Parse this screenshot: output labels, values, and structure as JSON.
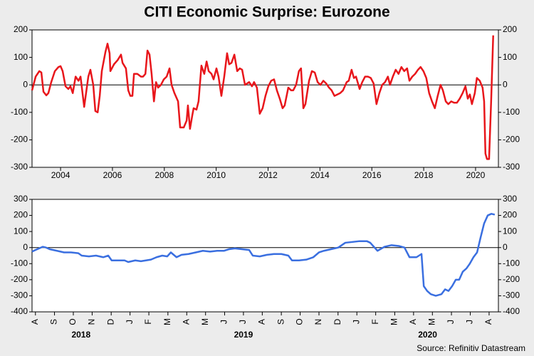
{
  "title": "CITI Economic Surprise: Eurozone",
  "source": "Source: Refinitiv Datastream",
  "chart_data": [
    {
      "type": "line",
      "color": "#e8161b",
      "xlim": [
        2002.9,
        2020.88
      ],
      "xticks": [
        2004,
        2006,
        2008,
        2010,
        2012,
        2014,
        2016,
        2018,
        2020
      ],
      "ylim": [
        -300,
        200
      ],
      "yticks": [
        -300,
        -200,
        -100,
        0,
        100,
        200
      ],
      "mirror_yticks": true,
      "zero_line": true,
      "x": [
        2002.9,
        2003.04,
        2003.18,
        2003.26,
        2003.34,
        2003.45,
        2003.53,
        2003.64,
        2003.78,
        2003.92,
        2004.0,
        2004.08,
        2004.19,
        2004.3,
        2004.38,
        2004.47,
        2004.58,
        2004.69,
        2004.77,
        2004.91,
        2005.07,
        2005.15,
        2005.26,
        2005.34,
        2005.43,
        2005.51,
        2005.59,
        2005.73,
        2005.81,
        2005.89,
        2005.92,
        2006.06,
        2006.2,
        2006.33,
        2006.39,
        2006.52,
        2006.61,
        2006.69,
        2006.77,
        2006.83,
        2006.96,
        2007.1,
        2007.18,
        2007.27,
        2007.35,
        2007.43,
        2007.51,
        2007.6,
        2007.68,
        2007.76,
        2007.87,
        2007.98,
        2008.09,
        2008.2,
        2008.28,
        2008.39,
        2008.53,
        2008.61,
        2008.75,
        2008.86,
        2008.91,
        2008.99,
        2009.08,
        2009.13,
        2009.24,
        2009.32,
        2009.43,
        2009.54,
        2009.63,
        2009.71,
        2009.82,
        2009.9,
        2010.01,
        2010.09,
        2010.2,
        2010.31,
        2010.42,
        2010.5,
        2010.59,
        2010.7,
        2010.81,
        2010.91,
        2011.0,
        2011.11,
        2011.27,
        2011.38,
        2011.46,
        2011.57,
        2011.68,
        2011.79,
        2011.9,
        2012.01,
        2012.12,
        2012.23,
        2012.34,
        2012.45,
        2012.56,
        2012.64,
        2012.78,
        2012.89,
        2012.97,
        2013.08,
        2013.19,
        2013.27,
        2013.36,
        2013.44,
        2013.58,
        2013.69,
        2013.8,
        2013.91,
        2014.02,
        2014.13,
        2014.24,
        2014.35,
        2014.45,
        2014.56,
        2014.67,
        2014.78,
        2014.89,
        2015.03,
        2015.11,
        2015.22,
        2015.31,
        2015.39,
        2015.53,
        2015.63,
        2015.74,
        2015.85,
        2015.96,
        2016.07,
        2016.18,
        2016.29,
        2016.4,
        2016.51,
        2016.62,
        2016.7,
        2016.81,
        2016.92,
        2017.03,
        2017.14,
        2017.25,
        2017.36,
        2017.45,
        2017.56,
        2017.67,
        2017.78,
        2017.88,
        2017.99,
        2018.1,
        2018.21,
        2018.32,
        2018.43,
        2018.54,
        2018.65,
        2018.74,
        2018.85,
        2018.95,
        2019.06,
        2019.17,
        2019.28,
        2019.39,
        2019.5,
        2019.61,
        2019.7,
        2019.78,
        2019.86,
        2019.97,
        2020.05,
        2020.16,
        2020.27,
        2020.33,
        2020.38,
        2020.44,
        2020.52,
        2020.6,
        2020.68
      ],
      "values": [
        -20,
        30,
        50,
        45,
        -25,
        -38,
        -30,
        10,
        50,
        65,
        68,
        50,
        -5,
        -15,
        -5,
        -30,
        30,
        15,
        30,
        -80,
        30,
        55,
        0,
        -95,
        -100,
        -40,
        50,
        120,
        150,
        115,
        50,
        75,
        90,
        110,
        80,
        60,
        -20,
        -40,
        -40,
        40,
        40,
        30,
        30,
        40,
        125,
        110,
        40,
        -60,
        10,
        -10,
        0,
        20,
        30,
        60,
        0,
        -30,
        -60,
        -155,
        -155,
        -130,
        -75,
        -160,
        -110,
        -85,
        -90,
        -60,
        70,
        40,
        85,
        50,
        40,
        20,
        60,
        30,
        -40,
        30,
        115,
        75,
        80,
        110,
        50,
        60,
        55,
        0,
        10,
        -5,
        10,
        -10,
        -105,
        -85,
        -40,
        -5,
        15,
        20,
        -20,
        -50,
        -85,
        -75,
        -10,
        -20,
        -20,
        0,
        50,
        60,
        -85,
        -70,
        15,
        50,
        45,
        10,
        0,
        15,
        5,
        -10,
        -20,
        -40,
        -35,
        -30,
        -20,
        10,
        15,
        55,
        25,
        30,
        -15,
        10,
        30,
        30,
        25,
        5,
        -70,
        -30,
        0,
        10,
        30,
        0,
        30,
        55,
        40,
        65,
        50,
        60,
        15,
        30,
        40,
        55,
        65,
        50,
        25,
        -30,
        -60,
        -85,
        -40,
        0,
        -20,
        -60,
        -70,
        -60,
        -65,
        -65,
        -50,
        -30,
        -5,
        -50,
        -35,
        -70,
        -30,
        25,
        15,
        -10,
        -60,
        -250,
        -270,
        -270,
        -60,
        180
      ]
    },
    {
      "type": "line",
      "color": "#3a6fe0",
      "xlim": [
        2018.568,
        2020.624
      ],
      "xticks": [
        {
          "value": 2018.583,
          "label": "A"
        },
        {
          "value": 2018.667,
          "label": "S"
        },
        {
          "value": 2018.75,
          "label": "O"
        },
        {
          "value": 2018.833,
          "label": "N"
        },
        {
          "value": 2018.917,
          "label": "D"
        },
        {
          "value": 2019.0,
          "label": "J"
        },
        {
          "value": 2019.083,
          "label": "F"
        },
        {
          "value": 2019.167,
          "label": "M"
        },
        {
          "value": 2019.25,
          "label": "A"
        },
        {
          "value": 2019.333,
          "label": "M"
        },
        {
          "value": 2019.417,
          "label": "J"
        },
        {
          "value": 2019.5,
          "label": "J"
        },
        {
          "value": 2019.583,
          "label": "A"
        },
        {
          "value": 2019.667,
          "label": "S"
        },
        {
          "value": 2019.75,
          "label": "O"
        },
        {
          "value": 2019.833,
          "label": "N"
        },
        {
          "value": 2019.917,
          "label": "D"
        },
        {
          "value": 2020.0,
          "label": "J"
        },
        {
          "value": 2020.083,
          "label": "F"
        },
        {
          "value": 2020.167,
          "label": "M"
        },
        {
          "value": 2020.25,
          "label": "A"
        },
        {
          "value": 2020.333,
          "label": "M"
        },
        {
          "value": 2020.417,
          "label": "J"
        },
        {
          "value": 2020.5,
          "label": "J"
        },
        {
          "value": 2020.583,
          "label": "A"
        }
      ],
      "year_labels": [
        2018,
        2019,
        2020
      ],
      "ylim": [
        -400,
        300
      ],
      "yticks": [
        -400,
        -300,
        -200,
        -100,
        0,
        100,
        200,
        300
      ],
      "mirror_yticks": true,
      "zero_line": true,
      "x": [
        2018.568,
        2018.583,
        2018.599,
        2018.615,
        2018.63,
        2018.646,
        2018.678,
        2018.709,
        2018.74,
        2018.772,
        2018.787,
        2018.819,
        2018.85,
        2018.882,
        2018.904,
        2018.919,
        2018.944,
        2018.976,
        2018.992,
        2019.023,
        2019.048,
        2019.07,
        2019.092,
        2019.117,
        2019.142,
        2019.164,
        2019.18,
        2019.205,
        2019.227,
        2019.258,
        2019.29,
        2019.321,
        2019.353,
        2019.384,
        2019.415,
        2019.437,
        2019.462,
        2019.494,
        2019.525,
        2019.541,
        2019.572,
        2019.604,
        2019.635,
        2019.667,
        2019.698,
        2019.714,
        2019.745,
        2019.777,
        2019.808,
        2019.833,
        2019.855,
        2019.886,
        2019.918,
        2019.949,
        2019.981,
        2020.012,
        2020.044,
        2020.059,
        2020.091,
        2020.122,
        2020.153,
        2020.185,
        2020.21,
        2020.232,
        2020.263,
        2020.285,
        2020.295,
        2020.31,
        2020.326,
        2020.348,
        2020.373,
        2020.389,
        2020.404,
        2020.42,
        2020.436,
        2020.451,
        2020.467,
        2020.483,
        2020.498,
        2020.514,
        2020.53,
        2020.545,
        2020.561,
        2020.577,
        2020.593,
        2020.608
      ],
      "values": [
        -25,
        -15,
        -5,
        5,
        0,
        -10,
        -20,
        -30,
        -30,
        -35,
        -50,
        -55,
        -50,
        -60,
        -50,
        -80,
        -80,
        -80,
        -90,
        -80,
        -85,
        -80,
        -75,
        -60,
        -50,
        -55,
        -30,
        -60,
        -45,
        -40,
        -30,
        -20,
        -25,
        -20,
        -20,
        -10,
        -5,
        -10,
        -15,
        -50,
        -55,
        -45,
        -40,
        -40,
        -50,
        -80,
        -80,
        -75,
        -60,
        -30,
        -20,
        -10,
        0,
        30,
        35,
        40,
        40,
        30,
        -20,
        5,
        15,
        10,
        0,
        -60,
        -60,
        -40,
        -240,
        -270,
        -290,
        -300,
        -290,
        -260,
        -270,
        -240,
        -200,
        -200,
        -150,
        -130,
        -100,
        -60,
        -30,
        60,
        150,
        200,
        210,
        205
      ]
    }
  ]
}
